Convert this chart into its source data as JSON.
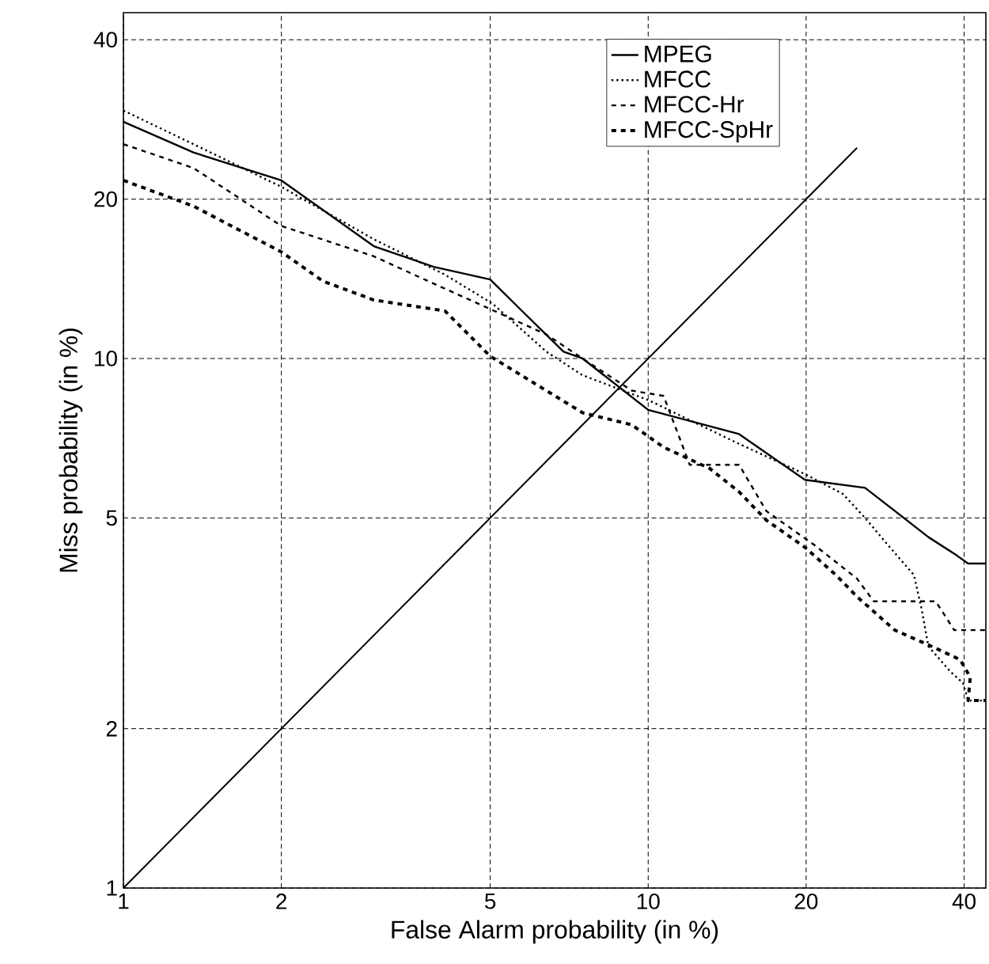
{
  "chart_data": {
    "type": "line",
    "xlabel": "False Alarm probability (in %)",
    "ylabel": "Miss probability (in %)",
    "xlim": [
      1,
      44
    ],
    "ylim": [
      1,
      45
    ],
    "xticks": [
      1,
      2,
      5,
      10,
      20,
      40
    ],
    "yticks": [
      1,
      2,
      5,
      10,
      20,
      40
    ],
    "grid": true,
    "legend": "top right",
    "log": "xy",
    "series": [
      {
        "name": "MPEG",
        "color": "#000000",
        "line_style": "solid",
        "x": [
          1,
          1.36,
          2,
          3,
          3.9,
          5,
          5.7,
          6.9,
          7.5,
          10,
          14.9,
          19.9,
          25.9,
          30.7,
          34.2,
          38.7,
          40.7,
          44
        ],
        "values": [
          28,
          24.5,
          21.7,
          16.3,
          14.9,
          14.1,
          12.4,
          10.3,
          10,
          8,
          7.2,
          5.9,
          5.7,
          5,
          4.6,
          4.25,
          4.1,
          4.1
        ]
      },
      {
        "name": "MFCC",
        "color": "#000000",
        "line_style": "dotted",
        "x": [
          1,
          1.36,
          2,
          3,
          4.1,
          5.05,
          6.4,
          7.5,
          10,
          14.9,
          19.9,
          23.5,
          25.9,
          28.6,
          32.1,
          33.2,
          34.2,
          37.7,
          39.8,
          40.7,
          44
        ],
        "values": [
          29.4,
          25.4,
          21.1,
          16.8,
          14.4,
          12.7,
          10.3,
          9.3,
          8.35,
          6.9,
          6.05,
          5.55,
          5,
          4.45,
          3.9,
          3.36,
          2.86,
          2.56,
          2.44,
          2.26,
          2.26
        ]
      },
      {
        "name": "MFCC-Hr",
        "color": "#000000",
        "line_style": "dashed",
        "x": [
          1,
          1.36,
          2,
          3,
          3.75,
          5,
          6.4,
          7.5,
          9.3,
          10.7,
          12,
          14.9,
          16.8,
          20.7,
          25,
          26.9,
          35.3,
          38.3,
          44
        ],
        "values": [
          25.4,
          22.9,
          17.8,
          15.6,
          14.1,
          12.4,
          11.1,
          10,
          8.7,
          8.5,
          6.3,
          6.3,
          5.15,
          4.45,
          3.84,
          3.48,
          3.48,
          3.07,
          3.07
        ]
      },
      {
        "name": "MFCC-SpHr",
        "color": "#000000",
        "line_style": "dashed",
        "x": [
          1,
          1.36,
          2,
          2.4,
          3,
          4.1,
          5,
          7.5,
          9.3,
          10.7,
          13.1,
          14.9,
          16.8,
          19.9,
          22.8,
          25,
          29.5,
          34.7,
          39.3,
          41.1,
          40.7,
          44
        ],
        "values": [
          21.7,
          19.4,
          15.9,
          14,
          12.9,
          12.3,
          10.1,
          7.9,
          7.5,
          6.8,
          6.2,
          5.6,
          4.95,
          4.4,
          3.9,
          3.55,
          3.07,
          2.86,
          2.7,
          2.5,
          2.26,
          2.26
        ]
      },
      {
        "color": "#000000",
        "line_style": "solid",
        "x": [
          1,
          25
        ],
        "values": [
          1,
          25
        ]
      }
    ]
  }
}
